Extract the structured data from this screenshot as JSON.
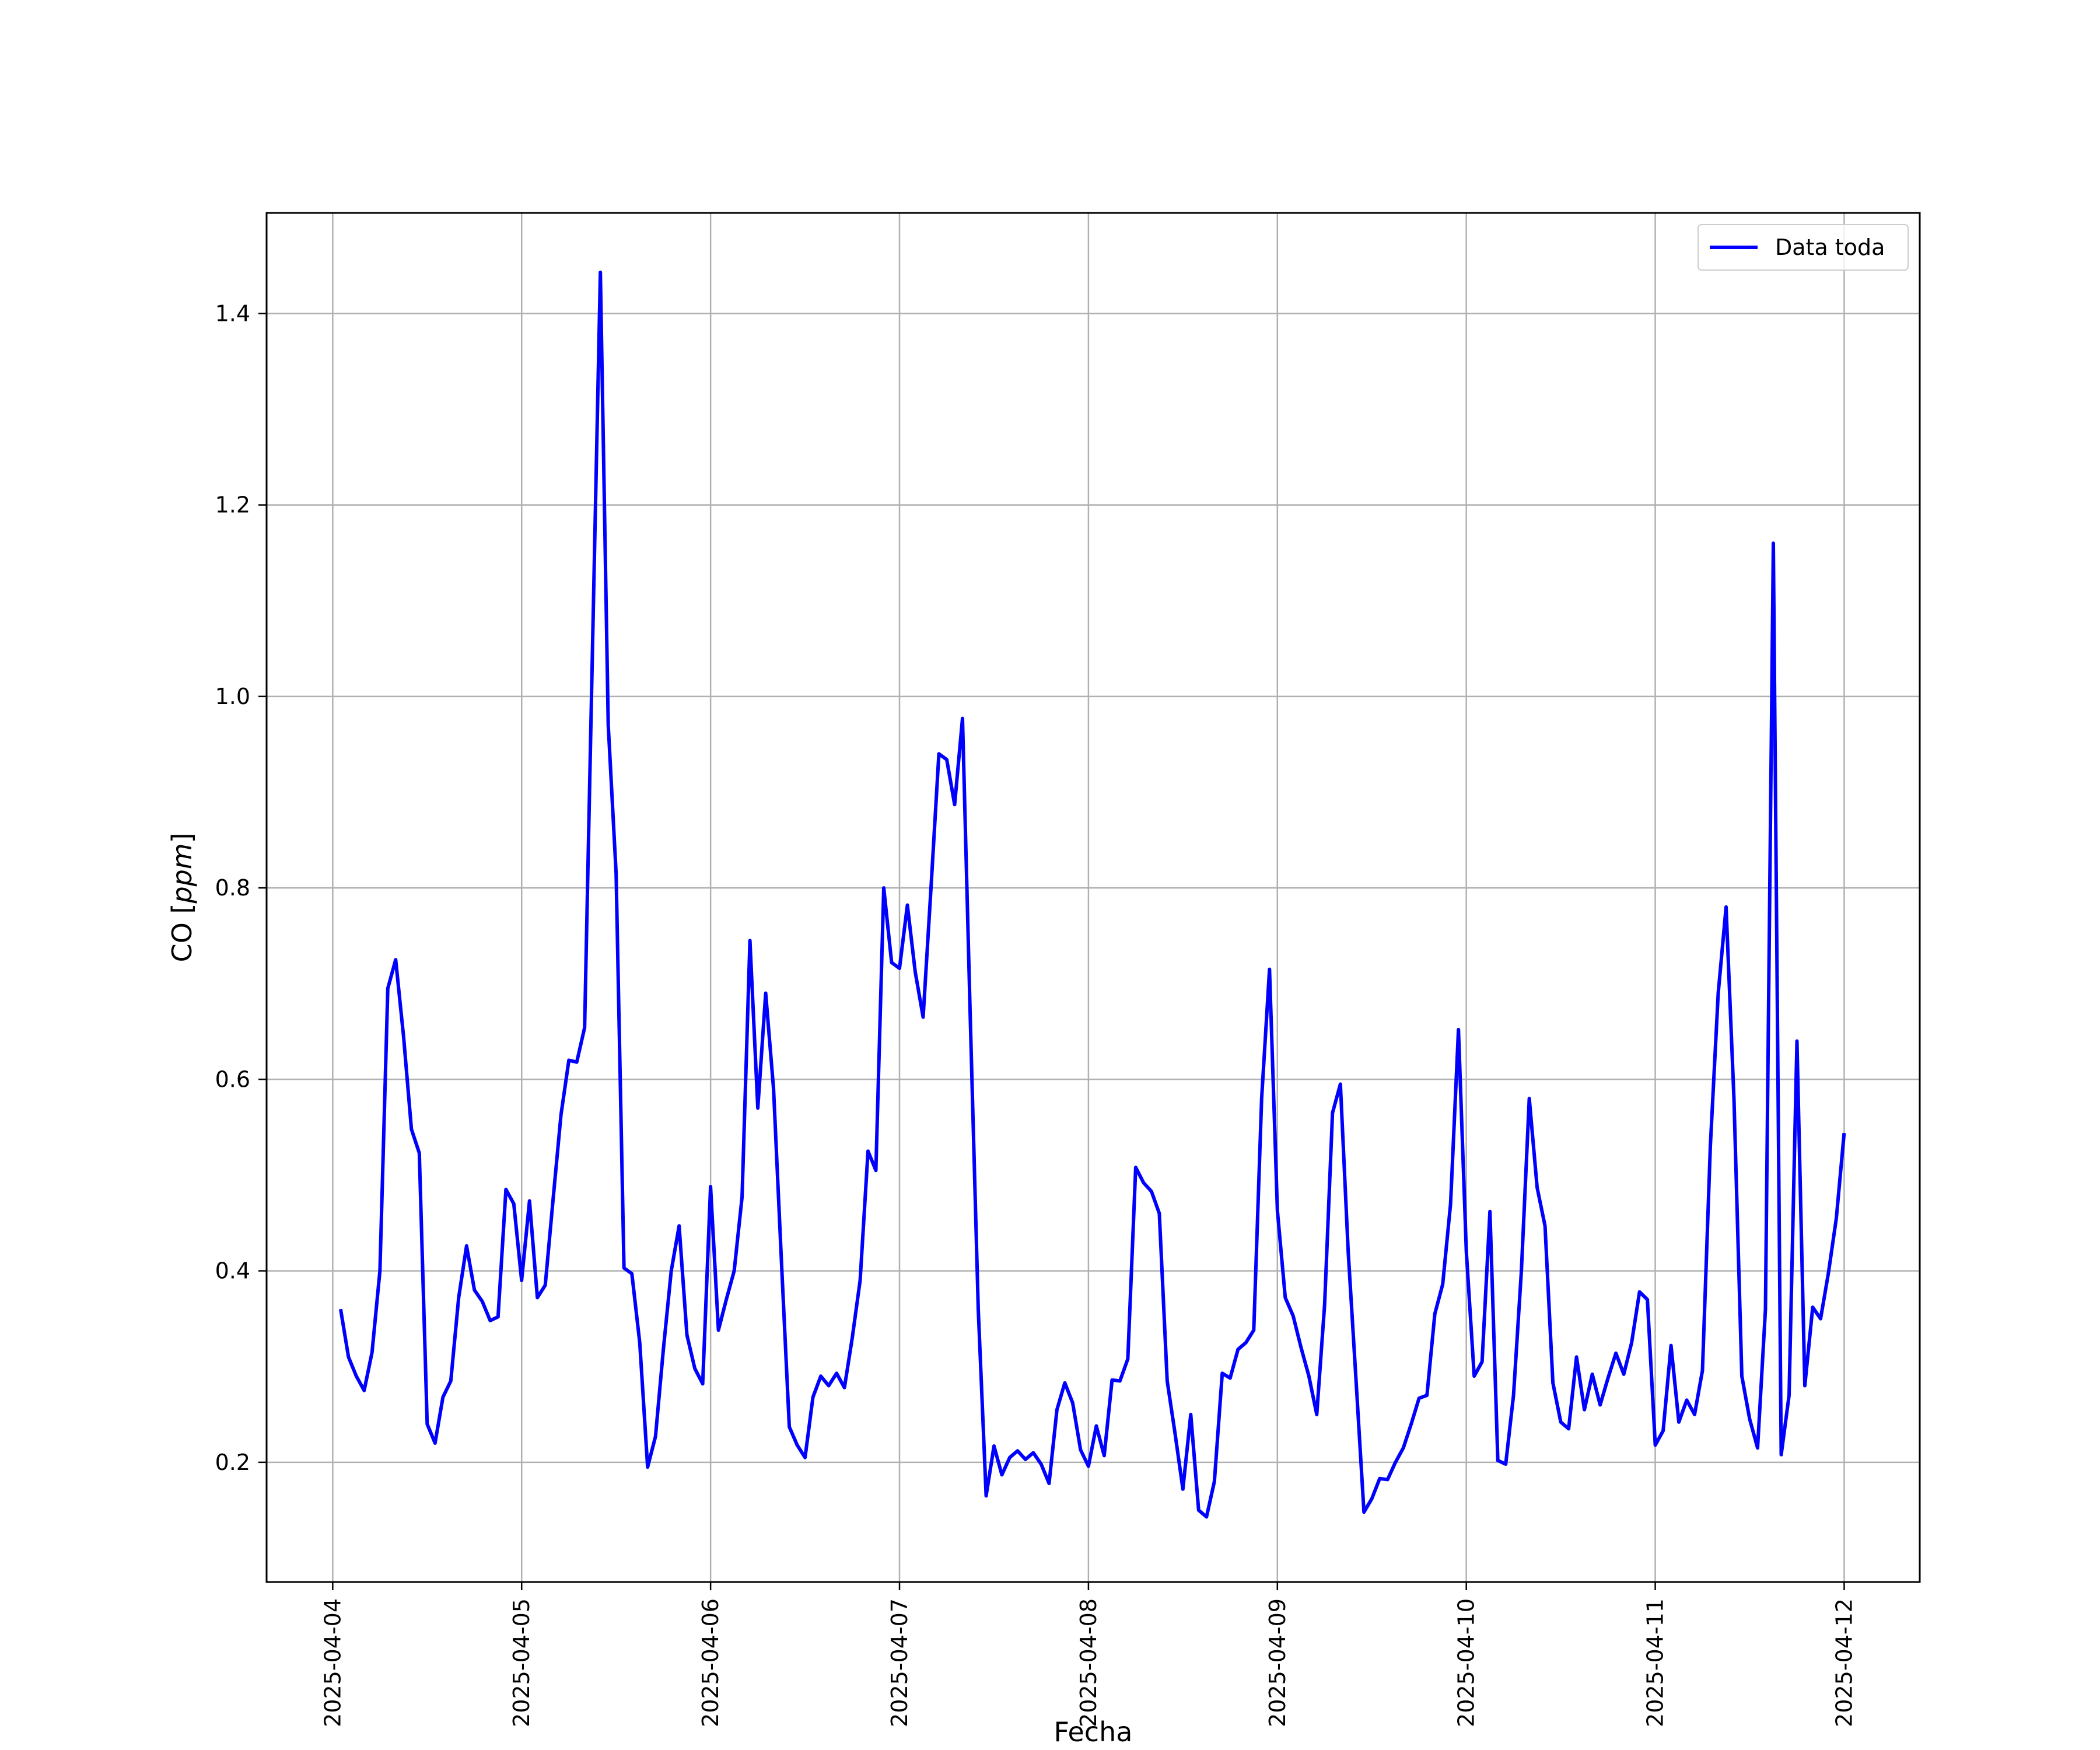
{
  "chart_data": {
    "type": "line",
    "title": "",
    "xlabel": "Fecha",
    "ylabel": "CO [ppm]",
    "ylabel_parts": {
      "prefix": "CO [",
      "unit": "ppm",
      "suffix": "]"
    },
    "xlim": [
      "2025-04-03 15:36",
      "2025-04-12 09:36"
    ],
    "ylim": [
      0.075,
      1.505
    ],
    "x_ticks": [
      "2025-04-04",
      "2025-04-05",
      "2025-04-06",
      "2025-04-07",
      "2025-04-08",
      "2025-04-09",
      "2025-04-10",
      "2025-04-11",
      "2025-04-12"
    ],
    "y_ticks": [
      0.2,
      0.4,
      0.6,
      0.8,
      1.0,
      1.2,
      1.4
    ],
    "y_tick_labels": [
      "0.2",
      "0.4",
      "0.6",
      "0.8",
      "1.0",
      "1.2",
      "1.4"
    ],
    "grid": true,
    "legend": {
      "position": "top-right",
      "entries": [
        "Data toda"
      ]
    },
    "colors": {
      "series": "#0000ff",
      "grid": "#b0b0b0",
      "axes": "#000000"
    },
    "series": [
      {
        "name": "Data toda",
        "start": "2025-04-04 01:00",
        "step_hours": 1,
        "values": [
          0.36,
          0.31,
          0.29,
          0.275,
          0.315,
          0.4,
          0.695,
          0.725,
          0.645,
          0.548,
          0.523,
          0.24,
          0.22,
          0.268,
          0.285,
          0.372,
          0.426,
          0.38,
          0.368,
          0.348,
          0.352,
          0.485,
          0.47,
          0.39,
          0.473,
          0.372,
          0.385,
          0.475,
          0.563,
          0.62,
          0.618,
          0.654,
          1.05,
          1.443,
          0.97,
          0.815,
          0.403,
          0.397,
          0.325,
          0.195,
          0.227,
          0.318,
          0.4,
          0.447,
          0.333,
          0.298,
          0.282,
          0.488,
          0.338,
          0.37,
          0.4,
          0.477,
          0.745,
          0.57,
          0.69,
          0.59,
          0.41,
          0.237,
          0.218,
          0.205,
          0.268,
          0.29,
          0.28,
          0.293,
          0.278,
          0.33,
          0.39,
          0.525,
          0.505,
          0.8,
          0.722,
          0.716,
          0.782,
          0.712,
          0.665,
          0.8,
          0.94,
          0.934,
          0.887,
          0.977,
          0.66,
          0.36,
          0.165,
          0.217,
          0.187,
          0.205,
          0.212,
          0.203,
          0.21,
          0.198,
          0.178,
          0.255,
          0.283,
          0.262,
          0.213,
          0.196,
          0.238,
          0.207,
          0.286,
          0.285,
          0.308,
          0.508,
          0.492,
          0.483,
          0.46,
          0.285,
          0.23,
          0.172,
          0.25,
          0.15,
          0.143,
          0.18,
          0.293,
          0.288,
          0.318,
          0.325,
          0.338,
          0.58,
          0.715,
          0.463,
          0.372,
          0.353,
          0.32,
          0.29,
          0.25,
          0.365,
          0.565,
          0.595,
          0.42,
          0.285,
          0.148,
          0.162,
          0.183,
          0.182,
          0.2,
          0.215,
          0.24,
          0.267,
          0.27,
          0.355,
          0.386,
          0.47,
          0.652,
          0.42,
          0.29,
          0.305,
          0.462,
          0.202,
          0.198,
          0.27,
          0.4,
          0.58,
          0.487,
          0.447,
          0.283,
          0.242,
          0.235,
          0.31,
          0.255,
          0.292,
          0.26,
          0.288,
          0.314,
          0.292,
          0.325,
          0.378,
          0.37,
          0.218,
          0.233,
          0.322,
          0.242,
          0.265,
          0.25,
          0.296,
          0.53,
          0.69,
          0.78,
          0.58,
          0.29,
          0.245,
          0.215,
          0.36,
          1.16,
          0.208,
          0.27,
          0.64,
          0.28,
          0.362,
          0.35,
          0.398,
          0.455,
          0.544
        ]
      }
    ]
  }
}
